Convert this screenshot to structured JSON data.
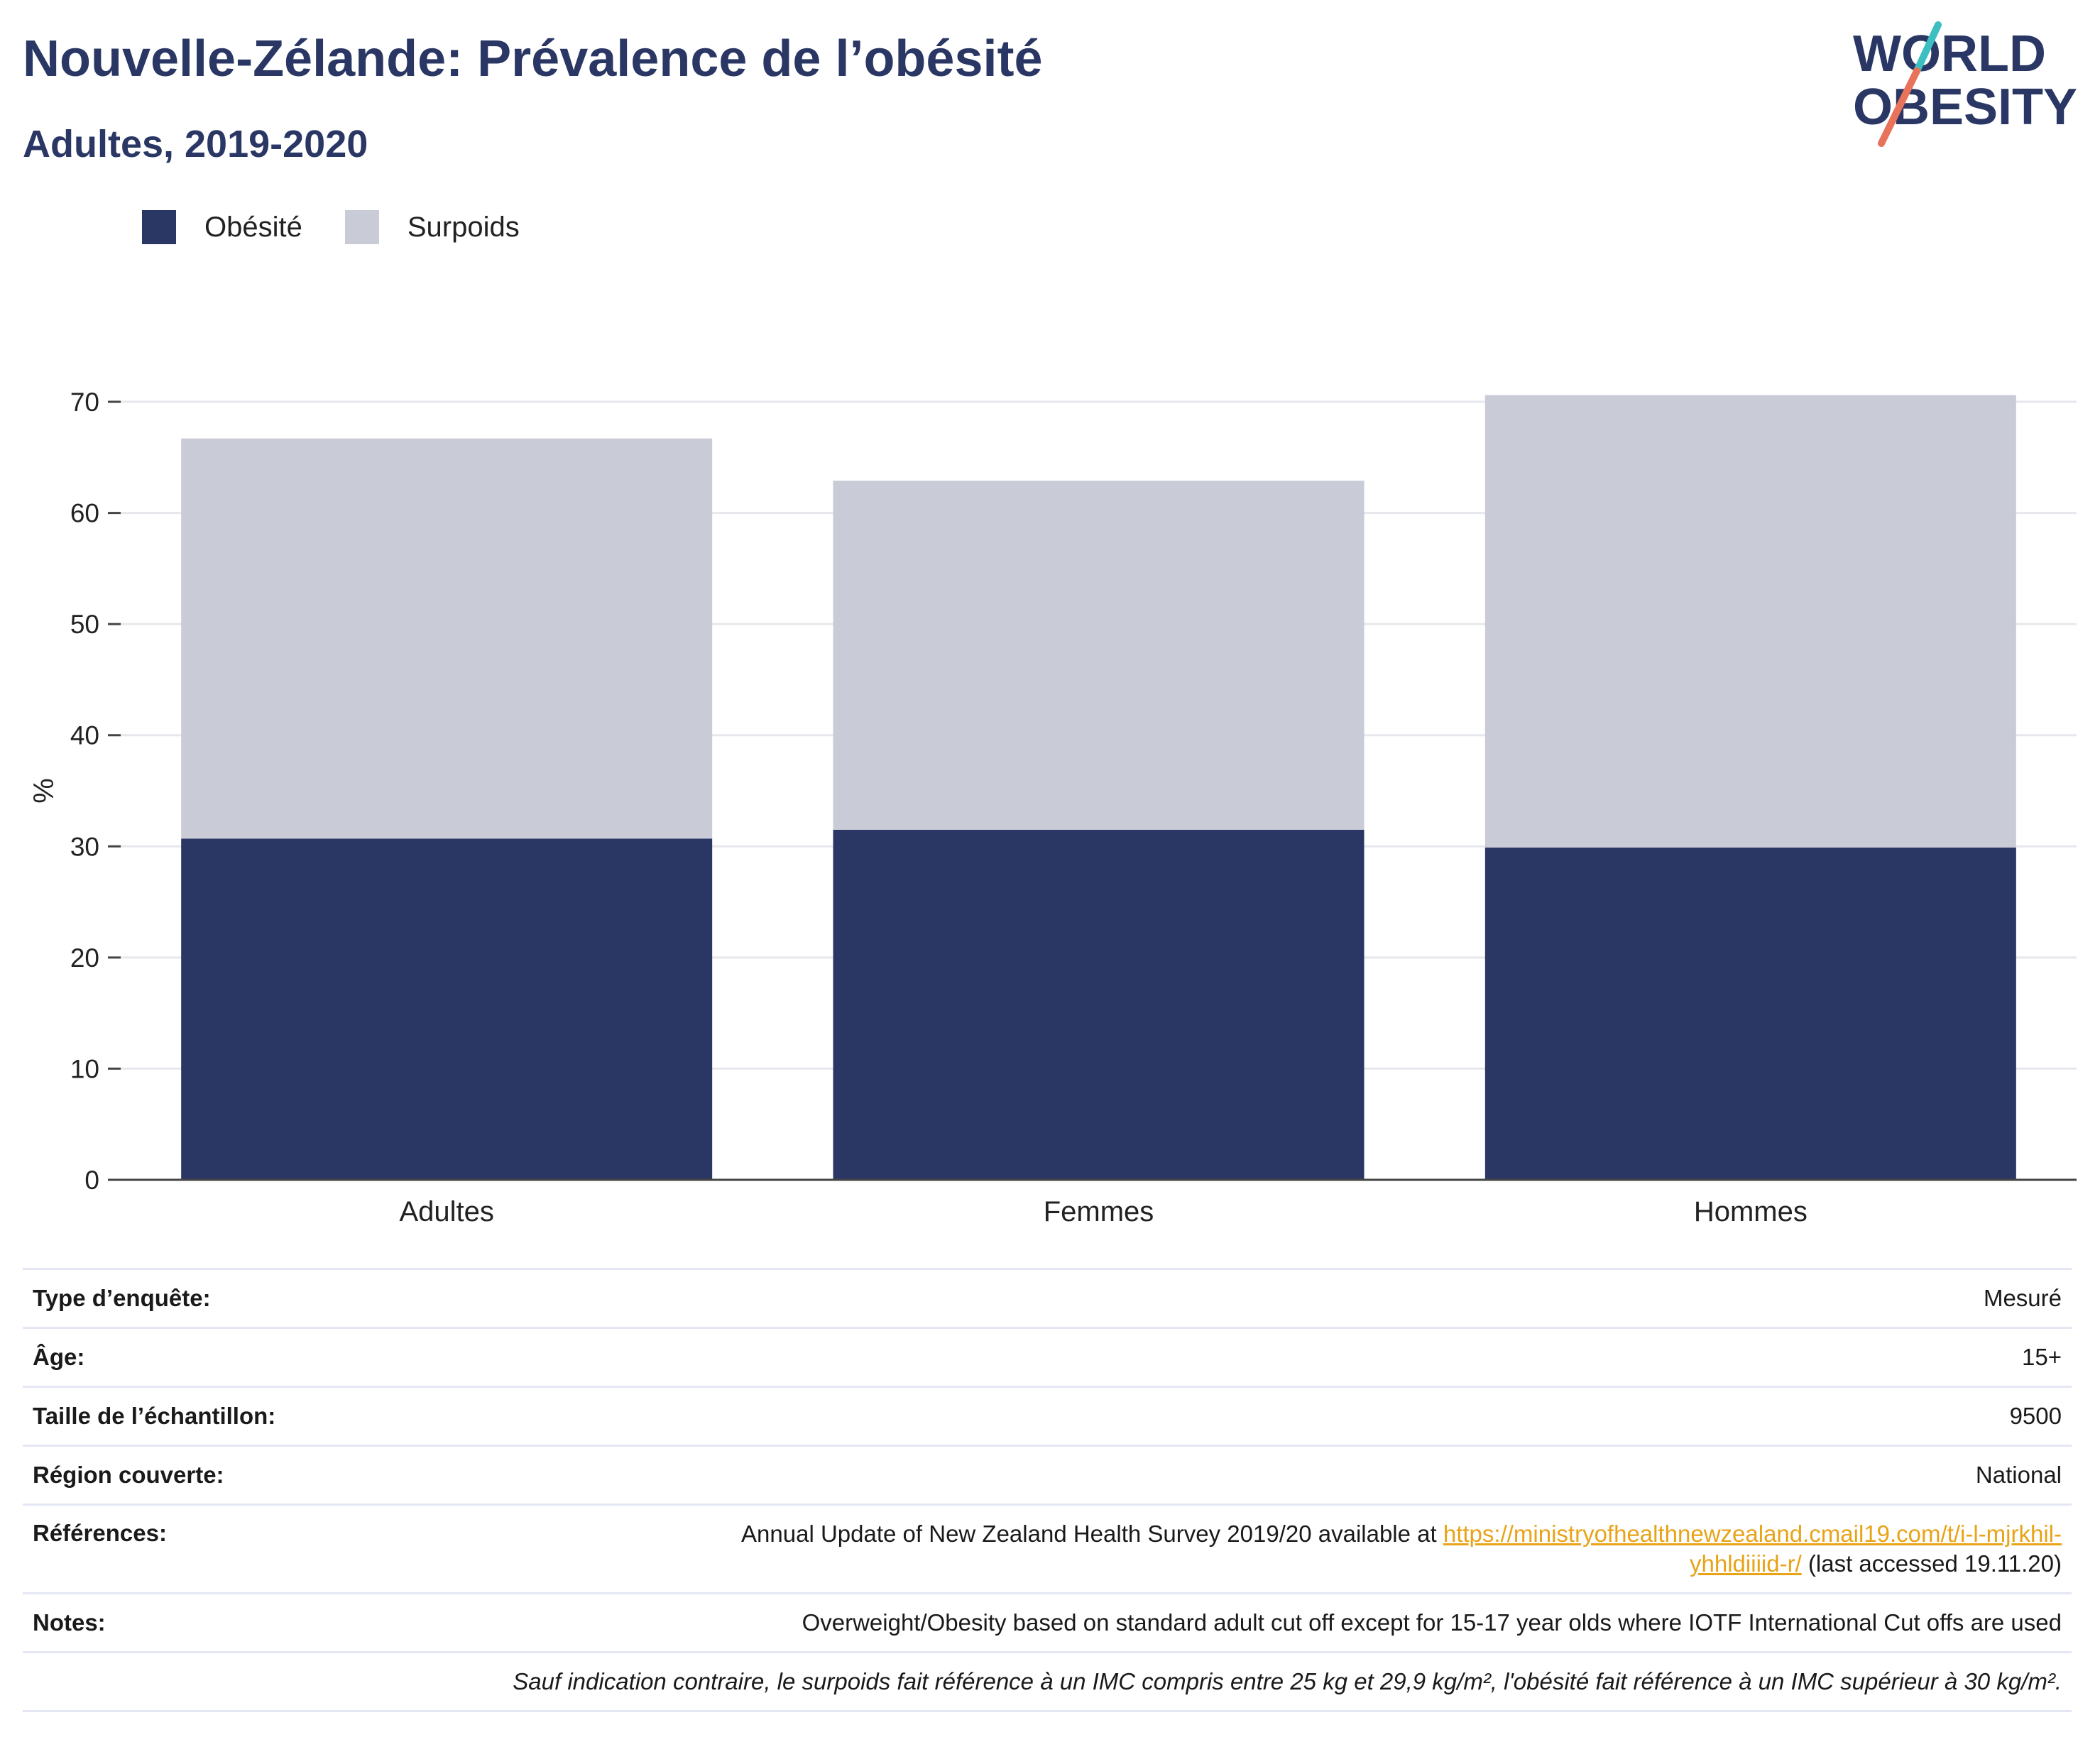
{
  "header": {
    "title": "Nouvelle-Zélande: Prévalence de l’obésité",
    "subtitle": "Adultes, 2019-2020"
  },
  "logo": {
    "line1": "WORLD",
    "line2": "OBESITY",
    "colors": {
      "text": "#2a3764",
      "slash_teal": "#3bbfc1",
      "slash_coral": "#e8735a"
    }
  },
  "legend": {
    "items": [
      {
        "label": "Obésité",
        "color": "#2a3764"
      },
      {
        "label": "Surpoids",
        "color": "#c9cbd7"
      }
    ]
  },
  "chart_data": {
    "type": "bar",
    "stacked": true,
    "categories": [
      "Adultes",
      "Femmes",
      "Hommes"
    ],
    "series": [
      {
        "name": "Obésité",
        "color": "#2a3764",
        "values": [
          30.7,
          31.5,
          29.9
        ]
      },
      {
        "name": "Surpoids",
        "color": "#c9cbd7",
        "values": [
          36.0,
          31.4,
          40.7
        ]
      }
    ],
    "ylabel": "%",
    "ylim": [
      0,
      70
    ],
    "yticks": [
      0,
      10,
      20,
      30,
      40,
      50,
      60,
      70
    ],
    "grid": true,
    "legend_position": "top-left"
  },
  "info": {
    "survey_type": {
      "label": "Type d’enquête:",
      "value": "Mesuré"
    },
    "age": {
      "label": "Âge:",
      "value": "15+"
    },
    "sample_size": {
      "label": "Taille de l’échantillon:",
      "value": "9500"
    },
    "region": {
      "label": "Région couverte:",
      "value": "National"
    },
    "references": {
      "label": "Références:",
      "text_before": "Annual Update of New Zealand Health Survey 2019/20 available at ",
      "link_part1": "https://ministryofhealthnewzealand.cmail19.com/t/i-l-mjrkhil-",
      "link_part2": "yhhldiiiid-r/",
      "text_after": " (last accessed 19.11.20)"
    },
    "notes": {
      "label": "Notes:",
      "value": "Overweight/Obesity based on standard adult cut off except for 15-17 year olds where IOTF International Cut offs are used"
    },
    "footnote": "Sauf indication contraire, le surpoids fait référence à un IMC compris entre 25 kg et 29,9 kg/m², l'obésité fait référence à un IMC supérieur à 30 kg/m²."
  }
}
